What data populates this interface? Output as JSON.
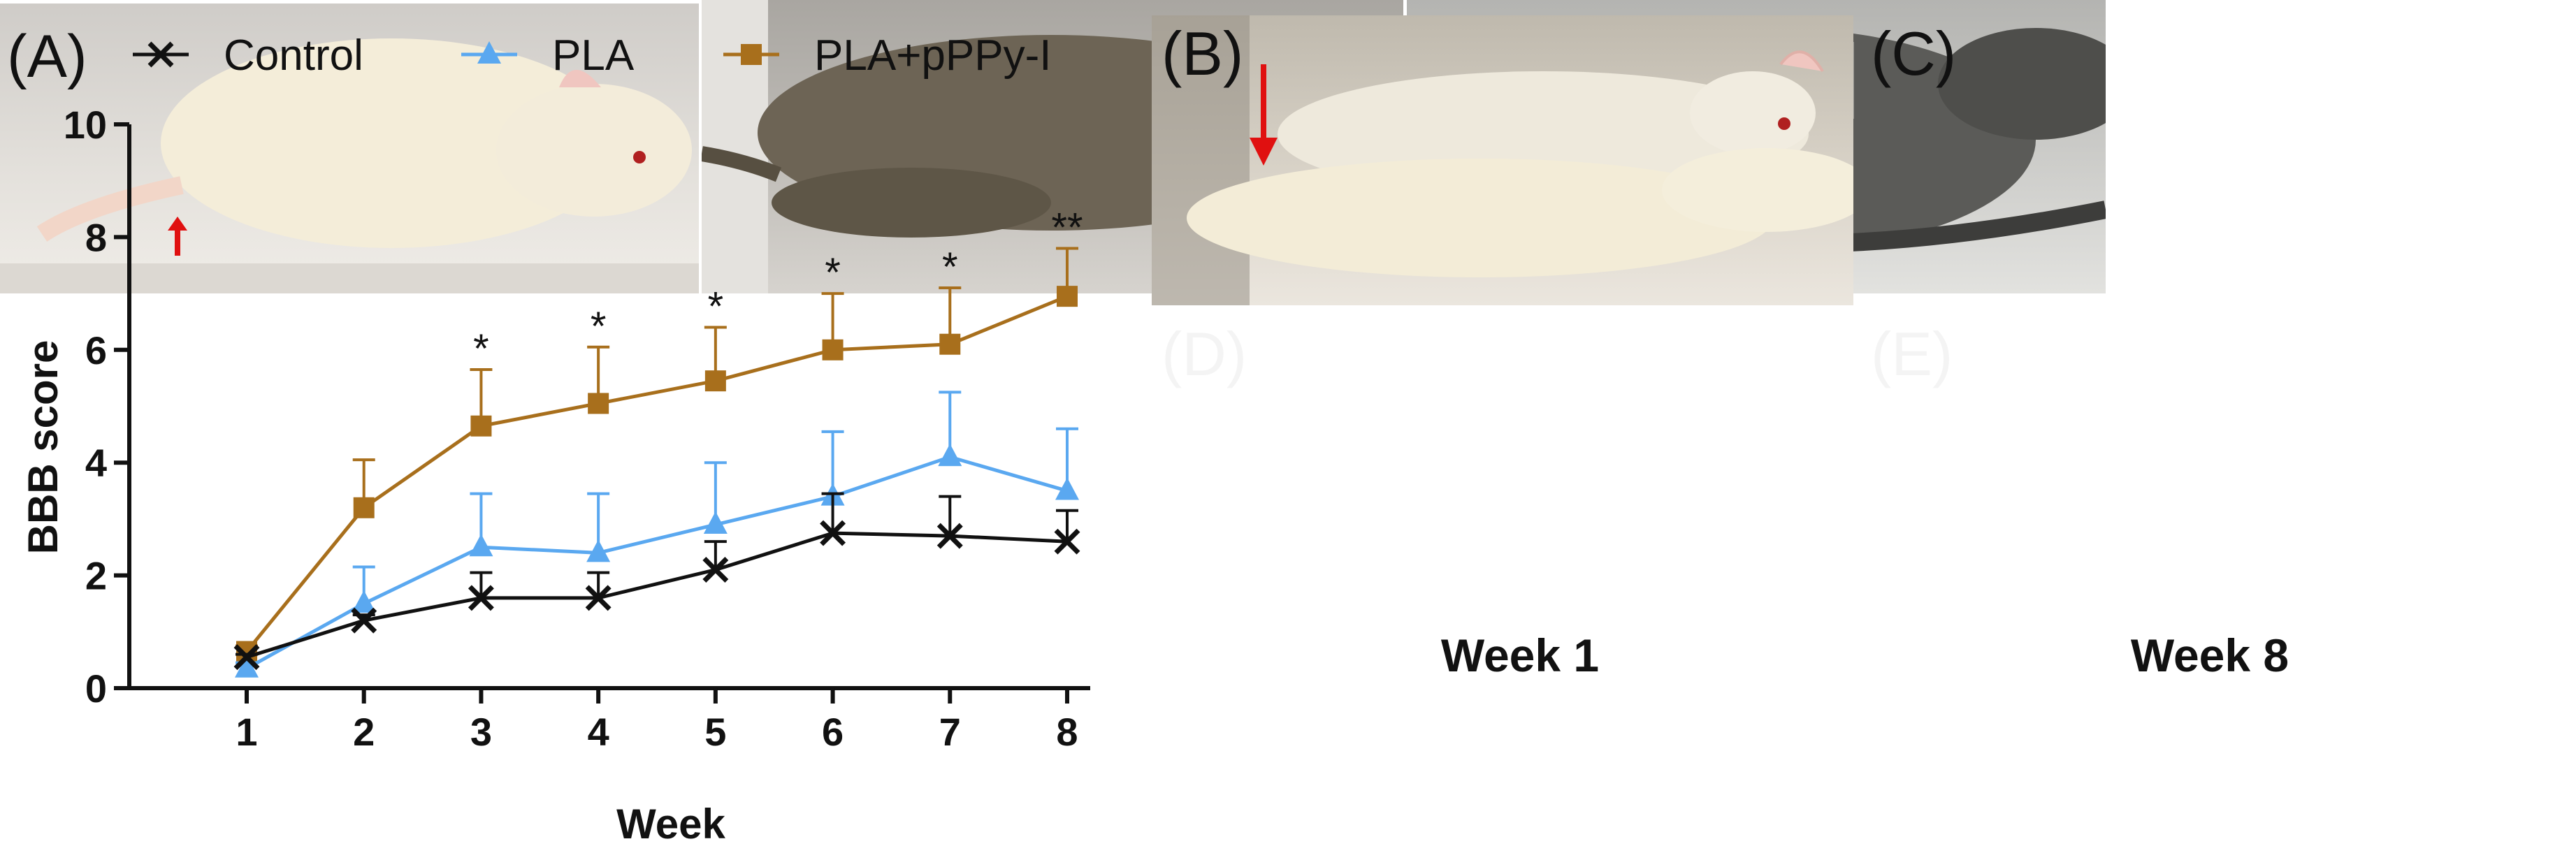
{
  "panels": {
    "chart_label": "(A)",
    "photo_labels": [
      "(B)",
      "(C)",
      "(D)",
      "(E)"
    ],
    "week_labels": [
      "Week 1",
      "Week 8"
    ]
  },
  "chart_data": {
    "type": "line",
    "x": [
      1,
      2,
      3,
      4,
      5,
      6,
      7,
      8
    ],
    "xticks": [
      "1",
      "2",
      "3",
      "4",
      "5",
      "6",
      "7",
      "8"
    ],
    "yticks": [
      "0",
      "2",
      "4",
      "6",
      "8",
      "10"
    ],
    "xlabel": "Week",
    "ylabel": "BBB score",
    "ylim": [
      0,
      10
    ],
    "legend_position": "top",
    "series": [
      {
        "name": "Control",
        "marker": "x",
        "color": "#111111",
        "values": [
          0.55,
          1.2,
          1.6,
          1.6,
          2.1,
          2.75,
          2.7,
          2.6
        ],
        "err": [
          0.05,
          0.1,
          0.45,
          0.45,
          0.5,
          0.7,
          0.7,
          0.55
        ]
      },
      {
        "name": "PLA",
        "marker": "triangle",
        "color": "#5aa8f0",
        "values": [
          0.35,
          1.5,
          2.5,
          2.4,
          2.9,
          3.4,
          4.1,
          3.5
        ],
        "err": [
          0.1,
          0.65,
          0.95,
          1.05,
          1.1,
          1.15,
          1.15,
          1.1
        ]
      },
      {
        "name": "PLA+pPPy-I",
        "marker": "square",
        "color": "#a86f1c",
        "values": [
          0.65,
          3.2,
          4.65,
          5.05,
          5.45,
          6.0,
          6.1,
          6.95
        ],
        "err": [
          0.1,
          0.85,
          1.0,
          1.0,
          0.95,
          1.0,
          1.0,
          0.85
        ]
      }
    ],
    "annotations": [
      {
        "x": 3,
        "text": "*"
      },
      {
        "x": 4,
        "text": "*"
      },
      {
        "x": 5,
        "text": "*"
      },
      {
        "x": 6,
        "text": "*"
      },
      {
        "x": 7,
        "text": "*"
      },
      {
        "x": 8,
        "text": "**"
      }
    ]
  }
}
